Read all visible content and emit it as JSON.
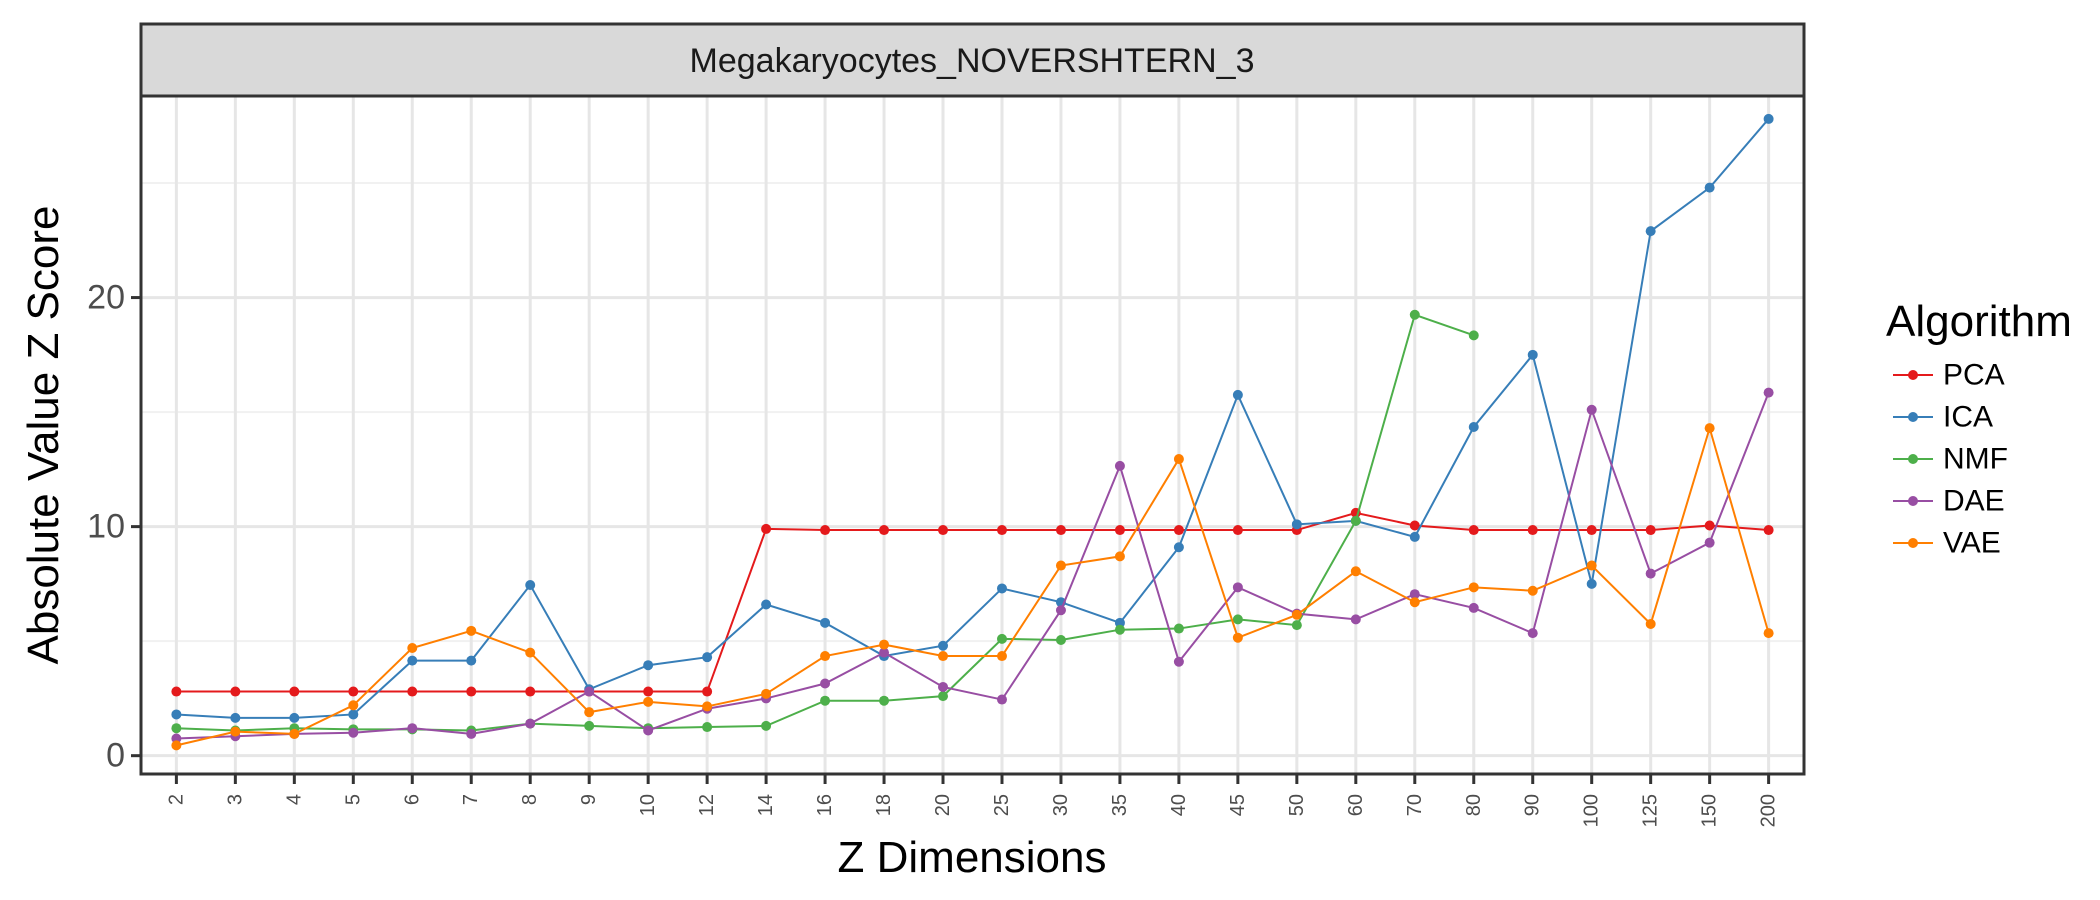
{
  "chart_data": {
    "type": "line",
    "facet_title": "Megakaryocytes_NOVERSHTERN_3",
    "xlabel": "Z Dimensions",
    "ylabel": "Absolute Value Z Score",
    "categories": [
      "2",
      "3",
      "4",
      "5",
      "6",
      "7",
      "8",
      "9",
      "10",
      "12",
      "14",
      "16",
      "18",
      "20",
      "25",
      "30",
      "35",
      "40",
      "45",
      "50",
      "60",
      "70",
      "80",
      "90",
      "100",
      "125",
      "150",
      "200"
    ],
    "y_ticks": [
      0,
      10,
      20
    ],
    "ylim": [
      -0.8,
      28.8
    ],
    "grid": true,
    "legend": {
      "title": "Algorithm",
      "placement": "right"
    },
    "series": [
      {
        "name": "PCA",
        "color": "#e41a1c",
        "values": [
          2.8,
          2.8,
          2.8,
          2.8,
          2.8,
          2.8,
          2.8,
          2.8,
          2.8,
          2.8,
          9.9,
          9.85,
          9.85,
          9.85,
          9.85,
          9.85,
          9.85,
          9.85,
          9.85,
          9.85,
          10.6,
          10.05,
          9.85,
          9.85,
          9.85,
          9.85,
          10.05,
          9.85
        ]
      },
      {
        "name": "ICA",
        "color": "#377eb8",
        "values": [
          1.8,
          1.65,
          1.65,
          1.8,
          4.15,
          4.15,
          7.45,
          2.9,
          3.95,
          4.3,
          6.6,
          5.8,
          4.35,
          4.8,
          7.3,
          6.7,
          5.8,
          9.1,
          15.75,
          10.1,
          10.25,
          9.55,
          14.35,
          17.5,
          7.5,
          22.9,
          24.8,
          27.8
        ]
      },
      {
        "name": "NMF",
        "color": "#4daf4a",
        "values": [
          1.2,
          1.1,
          1.2,
          1.15,
          1.15,
          1.1,
          1.4,
          1.3,
          1.2,
          1.25,
          1.3,
          2.4,
          2.4,
          2.6,
          5.1,
          5.05,
          5.5,
          5.55,
          5.95,
          5.7,
          10.25,
          19.25,
          18.35,
          null,
          null,
          null,
          null,
          null
        ]
      },
      {
        "name": "DAE",
        "color": "#984ea3",
        "values": [
          0.75,
          0.85,
          0.95,
          1.0,
          1.2,
          0.95,
          1.4,
          2.8,
          1.1,
          2.05,
          2.5,
          3.15,
          4.5,
          3.0,
          2.45,
          6.35,
          12.65,
          4.1,
          7.35,
          6.2,
          5.95,
          7.05,
          6.45,
          5.35,
          15.1,
          7.95,
          9.3,
          15.85
        ]
      },
      {
        "name": "VAE",
        "color": "#ff7f00",
        "values": [
          0.45,
          1.05,
          0.95,
          2.2,
          4.7,
          5.45,
          4.5,
          1.9,
          2.35,
          2.15,
          2.7,
          4.35,
          4.85,
          4.35,
          4.35,
          8.3,
          8.7,
          12.95,
          5.15,
          6.15,
          8.05,
          6.7,
          7.35,
          7.2,
          8.3,
          5.75,
          14.3,
          5.35
        ]
      }
    ]
  }
}
